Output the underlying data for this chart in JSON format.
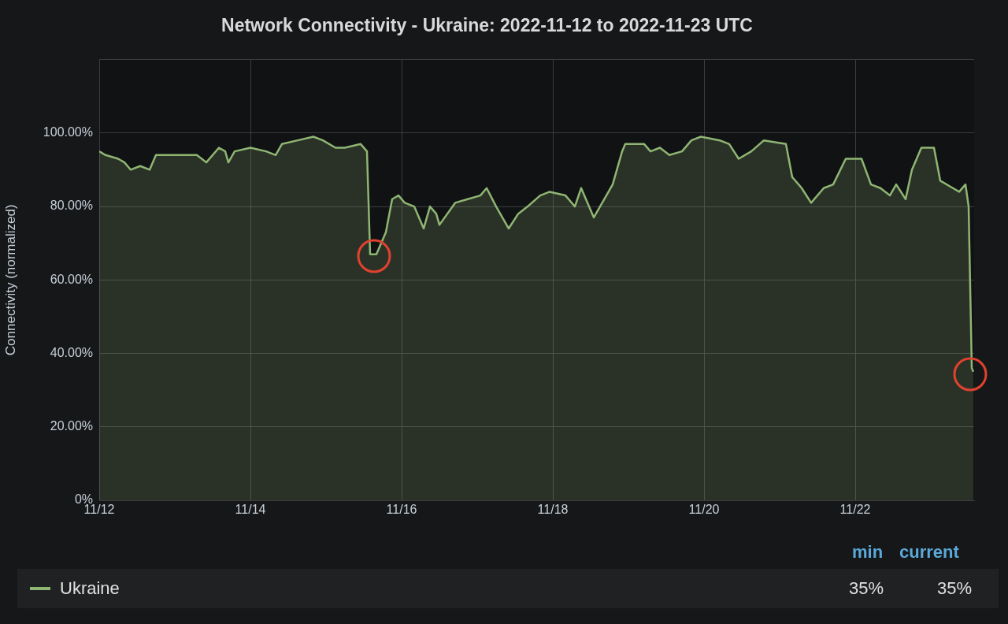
{
  "chart_data": {
    "type": "area",
    "title": "Network Connectivity - Ukraine: 2022-11-12 to 2022-11-23 UTC",
    "ylabel": "Connectivity (normalized)",
    "x": [
      "2022-11-12T00:00",
      "2022-11-12T02:00",
      "2022-11-12T06:00",
      "2022-11-12T08:00",
      "2022-11-12T10:00",
      "2022-11-12T13:00",
      "2022-11-12T16:00",
      "2022-11-12T18:00",
      "2022-11-12T21:00",
      "2022-11-13T02:00",
      "2022-11-13T07:00",
      "2022-11-13T10:00",
      "2022-11-13T14:00",
      "2022-11-13T16:00",
      "2022-11-13T17:00",
      "2022-11-13T19:00",
      "2022-11-14T00:00",
      "2022-11-14T05:00",
      "2022-11-14T08:00",
      "2022-11-14T10:00",
      "2022-11-14T15:00",
      "2022-11-14T20:00",
      "2022-11-14T23:00",
      "2022-11-15T03:00",
      "2022-11-15T06:00",
      "2022-11-15T11:00",
      "2022-11-15T13:00",
      "2022-11-15T14:00",
      "2022-11-15T16:00",
      "2022-11-15T19:00",
      "2022-11-15T21:00",
      "2022-11-15T23:00",
      "2022-11-16T01:00",
      "2022-11-16T04:00",
      "2022-11-16T07:00",
      "2022-11-16T09:00",
      "2022-11-16T11:00",
      "2022-11-16T12:00",
      "2022-11-16T17:00",
      "2022-11-16T21:00",
      "2022-11-17T01:00",
      "2022-11-17T03:00",
      "2022-11-17T06:00",
      "2022-11-17T10:00",
      "2022-11-17T13:00",
      "2022-11-17T16:00",
      "2022-11-17T20:00",
      "2022-11-17T23:00",
      "2022-11-18T04:00",
      "2022-11-18T07:00",
      "2022-11-18T09:00",
      "2022-11-18T13:00",
      "2022-11-18T17:00",
      "2022-11-18T19:00",
      "2022-11-18T22:00",
      "2022-11-18T23:00",
      "2022-11-19T05:00",
      "2022-11-19T07:00",
      "2022-11-19T10:00",
      "2022-11-19T13:00",
      "2022-11-19T17:00",
      "2022-11-19T20:00",
      "2022-11-19T23:00",
      "2022-11-20T05:00",
      "2022-11-20T08:00",
      "2022-11-20T11:00",
      "2022-11-20T15:00",
      "2022-11-20T19:00",
      "2022-11-21T02:00",
      "2022-11-21T04:00",
      "2022-11-21T07:00",
      "2022-11-21T10:00",
      "2022-11-21T14:00",
      "2022-11-21T17:00",
      "2022-11-21T21:00",
      "2022-11-22T02:00",
      "2022-11-22T05:00",
      "2022-11-22T08:00",
      "2022-11-22T11:00",
      "2022-11-22T13:00",
      "2022-11-22T16:00",
      "2022-11-22T18:00",
      "2022-11-22T21:00",
      "2022-11-23T01:00",
      "2022-11-23T03:00",
      "2022-11-23T07:00",
      "2022-11-23T09:00",
      "2022-11-23T11:00",
      "2022-11-23T12:00",
      "2022-11-23T13:00",
      "2022-11-23T13:30"
    ],
    "series": [
      {
        "name": "Ukraine",
        "color": "#8fb573",
        "values": [
          95,
          94,
          93,
          92,
          90,
          91,
          90,
          94,
          94,
          94,
          94,
          92,
          96,
          95,
          92,
          95,
          96,
          95,
          94,
          97,
          98,
          99,
          98,
          96,
          96,
          97,
          95,
          67,
          67,
          73,
          82,
          83,
          81,
          80,
          74,
          80,
          78,
          75,
          81,
          82,
          83,
          85,
          80,
          74,
          78,
          80,
          83,
          84,
          83,
          80,
          85,
          77,
          83,
          86,
          95,
          97,
          97,
          95,
          96,
          94,
          95,
          98,
          99,
          98,
          97,
          93,
          95,
          98,
          97,
          88,
          85,
          81,
          85,
          86,
          93,
          93,
          86,
          85,
          83,
          86,
          82,
          90,
          96,
          96,
          87,
          85,
          84,
          86,
          80,
          36,
          35
        ]
      }
    ],
    "xlim": [
      "2022-11-12T00:00",
      "2022-11-23T13:45"
    ],
    "xticks": [
      {
        "value": "2022-11-12",
        "label": "11/12"
      },
      {
        "value": "2022-11-14",
        "label": "11/14"
      },
      {
        "value": "2022-11-16",
        "label": "11/16"
      },
      {
        "value": "2022-11-18",
        "label": "11/18"
      },
      {
        "value": "2022-11-20",
        "label": "11/20"
      },
      {
        "value": "2022-11-22",
        "label": "11/22"
      }
    ],
    "ylim": [
      0,
      120
    ],
    "yticks": [
      {
        "value": 0,
        "label": "0%"
      },
      {
        "value": 20,
        "label": "20.00%"
      },
      {
        "value": 40,
        "label": "40.00%"
      },
      {
        "value": 60,
        "label": "60.00%"
      },
      {
        "value": 80,
        "label": "80.00%"
      },
      {
        "value": 100,
        "label": "100.00%"
      },
      {
        "value": 120,
        "label": null
      }
    ],
    "grid": true,
    "legend": "bottom",
    "annotations": [
      "min",
      "current",
      "35%",
      "35%"
    ]
  }
}
